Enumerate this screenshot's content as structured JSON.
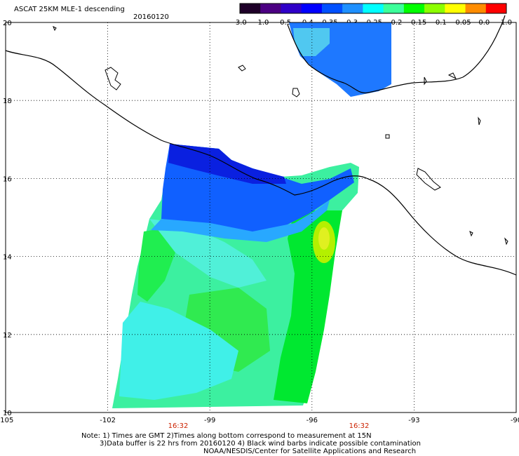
{
  "header": {
    "title": "ASCAT 25KM MLE-1 descending",
    "date": "20160120"
  },
  "colorbar": {
    "labels": [
      "-3.0",
      "-1.0",
      "-0.5",
      "-0.4",
      "-0.35",
      "-0.3",
      "-0.25",
      "-0.2",
      "-0.15",
      "-0.1",
      "-0.05",
      "0.0",
      "1.0"
    ],
    "colors": [
      "#1e0028",
      "#4b0082",
      "#2f00c8",
      "#0000ff",
      "#0050ff",
      "#1e90ff",
      "#00ffff",
      "#3cff9a",
      "#00ff00",
      "#8cff00",
      "#ffff00",
      "#ff8c00",
      "#ff0000"
    ]
  },
  "axes": {
    "lon_labels": [
      "-105",
      "-102",
      "-99",
      "-96",
      "-93",
      "-90"
    ],
    "lat_labels": [
      "20",
      "18",
      "16",
      "14",
      "12",
      "10"
    ],
    "lon_range": [
      -105,
      -90
    ],
    "lat_range": [
      10,
      20
    ]
  },
  "times": [
    "16:32",
    "16:32"
  ],
  "notes": {
    "line1": "Note: 1) Times are GMT 2)Times along bottom correspond to measurement at 15N",
    "line2": "3)Data buffer is 22 hrs from 20160120 4) Black wind barbs indicate possible contamination",
    "line3": "NOAA/NESDIS/Center for Satellite Applications and Research"
  }
}
